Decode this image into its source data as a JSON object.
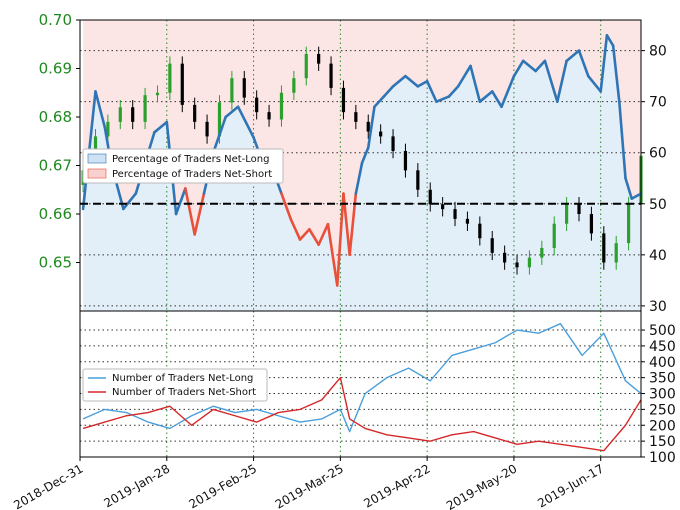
{
  "chart_data": [
    {
      "type": "line",
      "title": "",
      "x_axis": {
        "type": "date",
        "tick_labels": [
          "2018-Dec-31",
          "2019-Jan-28",
          "2019-Feb-25",
          "2019-Mar-25",
          "2019-Apr-22",
          "2019-May-20",
          "2019-Jun-17"
        ],
        "tick_dates": [
          "2018-12-31",
          "2019-01-28",
          "2019-02-25",
          "2019-03-25",
          "2019-04-22",
          "2019-05-20",
          "2019-06-17"
        ],
        "range": [
          "2018-12-31",
          "2019-06-30"
        ]
      },
      "y_left": {
        "range": [
          0.64,
          0.7
        ],
        "ticks": [
          "0.70",
          "0.69",
          "0.68",
          "0.67",
          "0.66",
          "0.65"
        ],
        "tick_values": [
          0.7,
          0.69,
          0.68,
          0.67,
          0.66,
          0.65
        ]
      },
      "y_right": {
        "range": [
          29,
          86
        ],
        "ticks": [
          "80",
          "70",
          "60",
          "50",
          "40",
          "30"
        ],
        "tick_values": [
          80,
          70,
          60,
          50,
          40,
          30
        ]
      },
      "grid": "dotted",
      "legend_position": "center-left",
      "reference_line": {
        "axis": "right",
        "value": 50,
        "style": "dashed",
        "color": "#000000"
      },
      "series": [
        {
          "name": "Percentage of Traders Net-Long",
          "axis": "right",
          "line_color": "#2f75b5",
          "fill_color": "#cfe2f3",
          "short_line_color": "#e8503a",
          "short_fill_color": "#f8d0d0",
          "x": [
            "2019-01-01",
            "2019-01-05",
            "2019-01-08",
            "2019-01-10",
            "2019-01-14",
            "2019-01-18",
            "2019-01-21",
            "2019-01-24",
            "2019-01-28",
            "2019-01-31",
            "2019-02-03",
            "2019-02-06",
            "2019-02-09",
            "2019-02-12",
            "2019-02-16",
            "2019-02-20",
            "2019-02-25",
            "2019-02-28",
            "2019-03-03",
            "2019-03-06",
            "2019-03-09",
            "2019-03-12",
            "2019-03-15",
            "2019-03-18",
            "2019-03-21",
            "2019-03-24",
            "2019-03-26",
            "2019-03-28",
            "2019-03-30",
            "2019-04-01",
            "2019-04-03",
            "2019-04-05",
            "2019-04-08",
            "2019-04-11",
            "2019-04-15",
            "2019-04-19",
            "2019-04-22",
            "2019-04-25",
            "2019-04-29",
            "2019-05-02",
            "2019-05-06",
            "2019-05-09",
            "2019-05-13",
            "2019-05-16",
            "2019-05-20",
            "2019-05-23",
            "2019-05-27",
            "2019-05-30",
            "2019-06-03",
            "2019-06-06",
            "2019-06-10",
            "2019-06-13",
            "2019-06-17",
            "2019-06-19",
            "2019-06-21",
            "2019-06-23",
            "2019-06-25",
            "2019-06-27",
            "2019-06-30"
          ],
          "values": [
            49,
            72,
            65,
            58,
            49,
            52,
            58,
            64,
            66,
            48,
            53,
            44,
            52,
            60,
            67,
            69,
            63,
            58,
            57,
            52,
            47,
            43,
            45,
            42,
            46,
            34,
            52,
            40,
            52,
            58,
            61,
            69,
            71,
            73,
            75,
            73,
            74,
            70,
            71,
            73,
            77,
            70,
            72,
            69,
            75,
            78,
            76,
            78,
            70,
            78,
            80,
            75,
            72,
            83,
            81,
            70,
            55,
            51,
            52
          ]
        },
        {
          "name": "Percentage of Traders Net-Short",
          "axis": "right",
          "fill_color": "#f8d0d0"
        },
        {
          "name": "",
          "type": "candlestick",
          "axis": "left",
          "up_color": "#2ca02c",
          "down_color": "#000000",
          "x": [
            "2019-01-01",
            "2019-01-05",
            "2019-01-09",
            "2019-01-13",
            "2019-01-17",
            "2019-01-21",
            "2019-01-25",
            "2019-01-29",
            "2019-02-02",
            "2019-02-06",
            "2019-02-10",
            "2019-02-14",
            "2019-02-18",
            "2019-02-22",
            "2019-02-26",
            "2019-03-02",
            "2019-03-06",
            "2019-03-10",
            "2019-03-14",
            "2019-03-18",
            "2019-03-22",
            "2019-03-26",
            "2019-03-30",
            "2019-04-03",
            "2019-04-07",
            "2019-04-11",
            "2019-04-15",
            "2019-04-19",
            "2019-04-23",
            "2019-04-27",
            "2019-05-01",
            "2019-05-05",
            "2019-05-09",
            "2019-05-13",
            "2019-05-17",
            "2019-05-21",
            "2019-05-25",
            "2019-05-29",
            "2019-06-02",
            "2019-06-06",
            "2019-06-10",
            "2019-06-14",
            "2019-06-18",
            "2019-06-22",
            "2019-06-26",
            "2019-06-30"
          ],
          "close": [
            0.669,
            0.676,
            0.679,
            0.682,
            0.679,
            0.6845,
            0.685,
            0.691,
            0.6825,
            0.679,
            0.676,
            0.683,
            0.688,
            0.684,
            0.681,
            0.6795,
            0.685,
            0.688,
            0.693,
            0.691,
            0.686,
            0.681,
            0.679,
            0.677,
            0.676,
            0.673,
            0.669,
            0.665,
            0.662,
            0.661,
            0.659,
            0.658,
            0.655,
            0.652,
            0.65,
            0.649,
            0.651,
            0.653,
            0.658,
            0.662,
            0.66,
            0.656,
            0.65,
            0.654,
            0.662,
            0.672
          ]
        }
      ]
    },
    {
      "type": "line",
      "title": "",
      "x_axis": {
        "type": "date",
        "range": [
          "2018-12-31",
          "2019-06-30"
        ]
      },
      "y_right": {
        "range": [
          100,
          560
        ],
        "ticks": [
          "500",
          "450",
          "400",
          "350",
          "300",
          "250",
          "200",
          "150",
          "100"
        ],
        "tick_values": [
          500,
          450,
          400,
          350,
          300,
          250,
          200,
          150,
          100
        ]
      },
      "grid": "dotted",
      "legend_position": "center-left",
      "series": [
        {
          "name": "Number of Traders Net-Long",
          "color": "#4a9fdc",
          "x": [
            "2019-01-01",
            "2019-01-08",
            "2019-01-15",
            "2019-01-22",
            "2019-01-29",
            "2019-02-05",
            "2019-02-12",
            "2019-02-19",
            "2019-02-26",
            "2019-03-05",
            "2019-03-12",
            "2019-03-19",
            "2019-03-25",
            "2019-03-28",
            "2019-04-02",
            "2019-04-09",
            "2019-04-16",
            "2019-04-23",
            "2019-04-30",
            "2019-05-07",
            "2019-05-14",
            "2019-05-21",
            "2019-05-28",
            "2019-06-04",
            "2019-06-11",
            "2019-06-18",
            "2019-06-25",
            "2019-06-30"
          ],
          "values": [
            220,
            250,
            240,
            210,
            190,
            230,
            260,
            240,
            250,
            230,
            210,
            220,
            250,
            180,
            300,
            350,
            380,
            340,
            420,
            440,
            460,
            500,
            490,
            520,
            420,
            490,
            340,
            300
          ]
        },
        {
          "name": "Number of Traders Net-Short",
          "color": "#d62728",
          "x": [
            "2019-01-01",
            "2019-01-08",
            "2019-01-15",
            "2019-01-22",
            "2019-01-29",
            "2019-02-05",
            "2019-02-12",
            "2019-02-19",
            "2019-02-26",
            "2019-03-05",
            "2019-03-12",
            "2019-03-19",
            "2019-03-25",
            "2019-03-28",
            "2019-04-02",
            "2019-04-09",
            "2019-04-16",
            "2019-04-23",
            "2019-04-30",
            "2019-05-07",
            "2019-05-14",
            "2019-05-21",
            "2019-05-28",
            "2019-06-04",
            "2019-06-11",
            "2019-06-18",
            "2019-06-25",
            "2019-06-30"
          ],
          "values": [
            190,
            210,
            230,
            240,
            260,
            200,
            250,
            230,
            210,
            240,
            250,
            280,
            350,
            220,
            190,
            170,
            160,
            150,
            170,
            180,
            160,
            140,
            150,
            140,
            130,
            120,
            200,
            280
          ]
        }
      ]
    }
  ]
}
